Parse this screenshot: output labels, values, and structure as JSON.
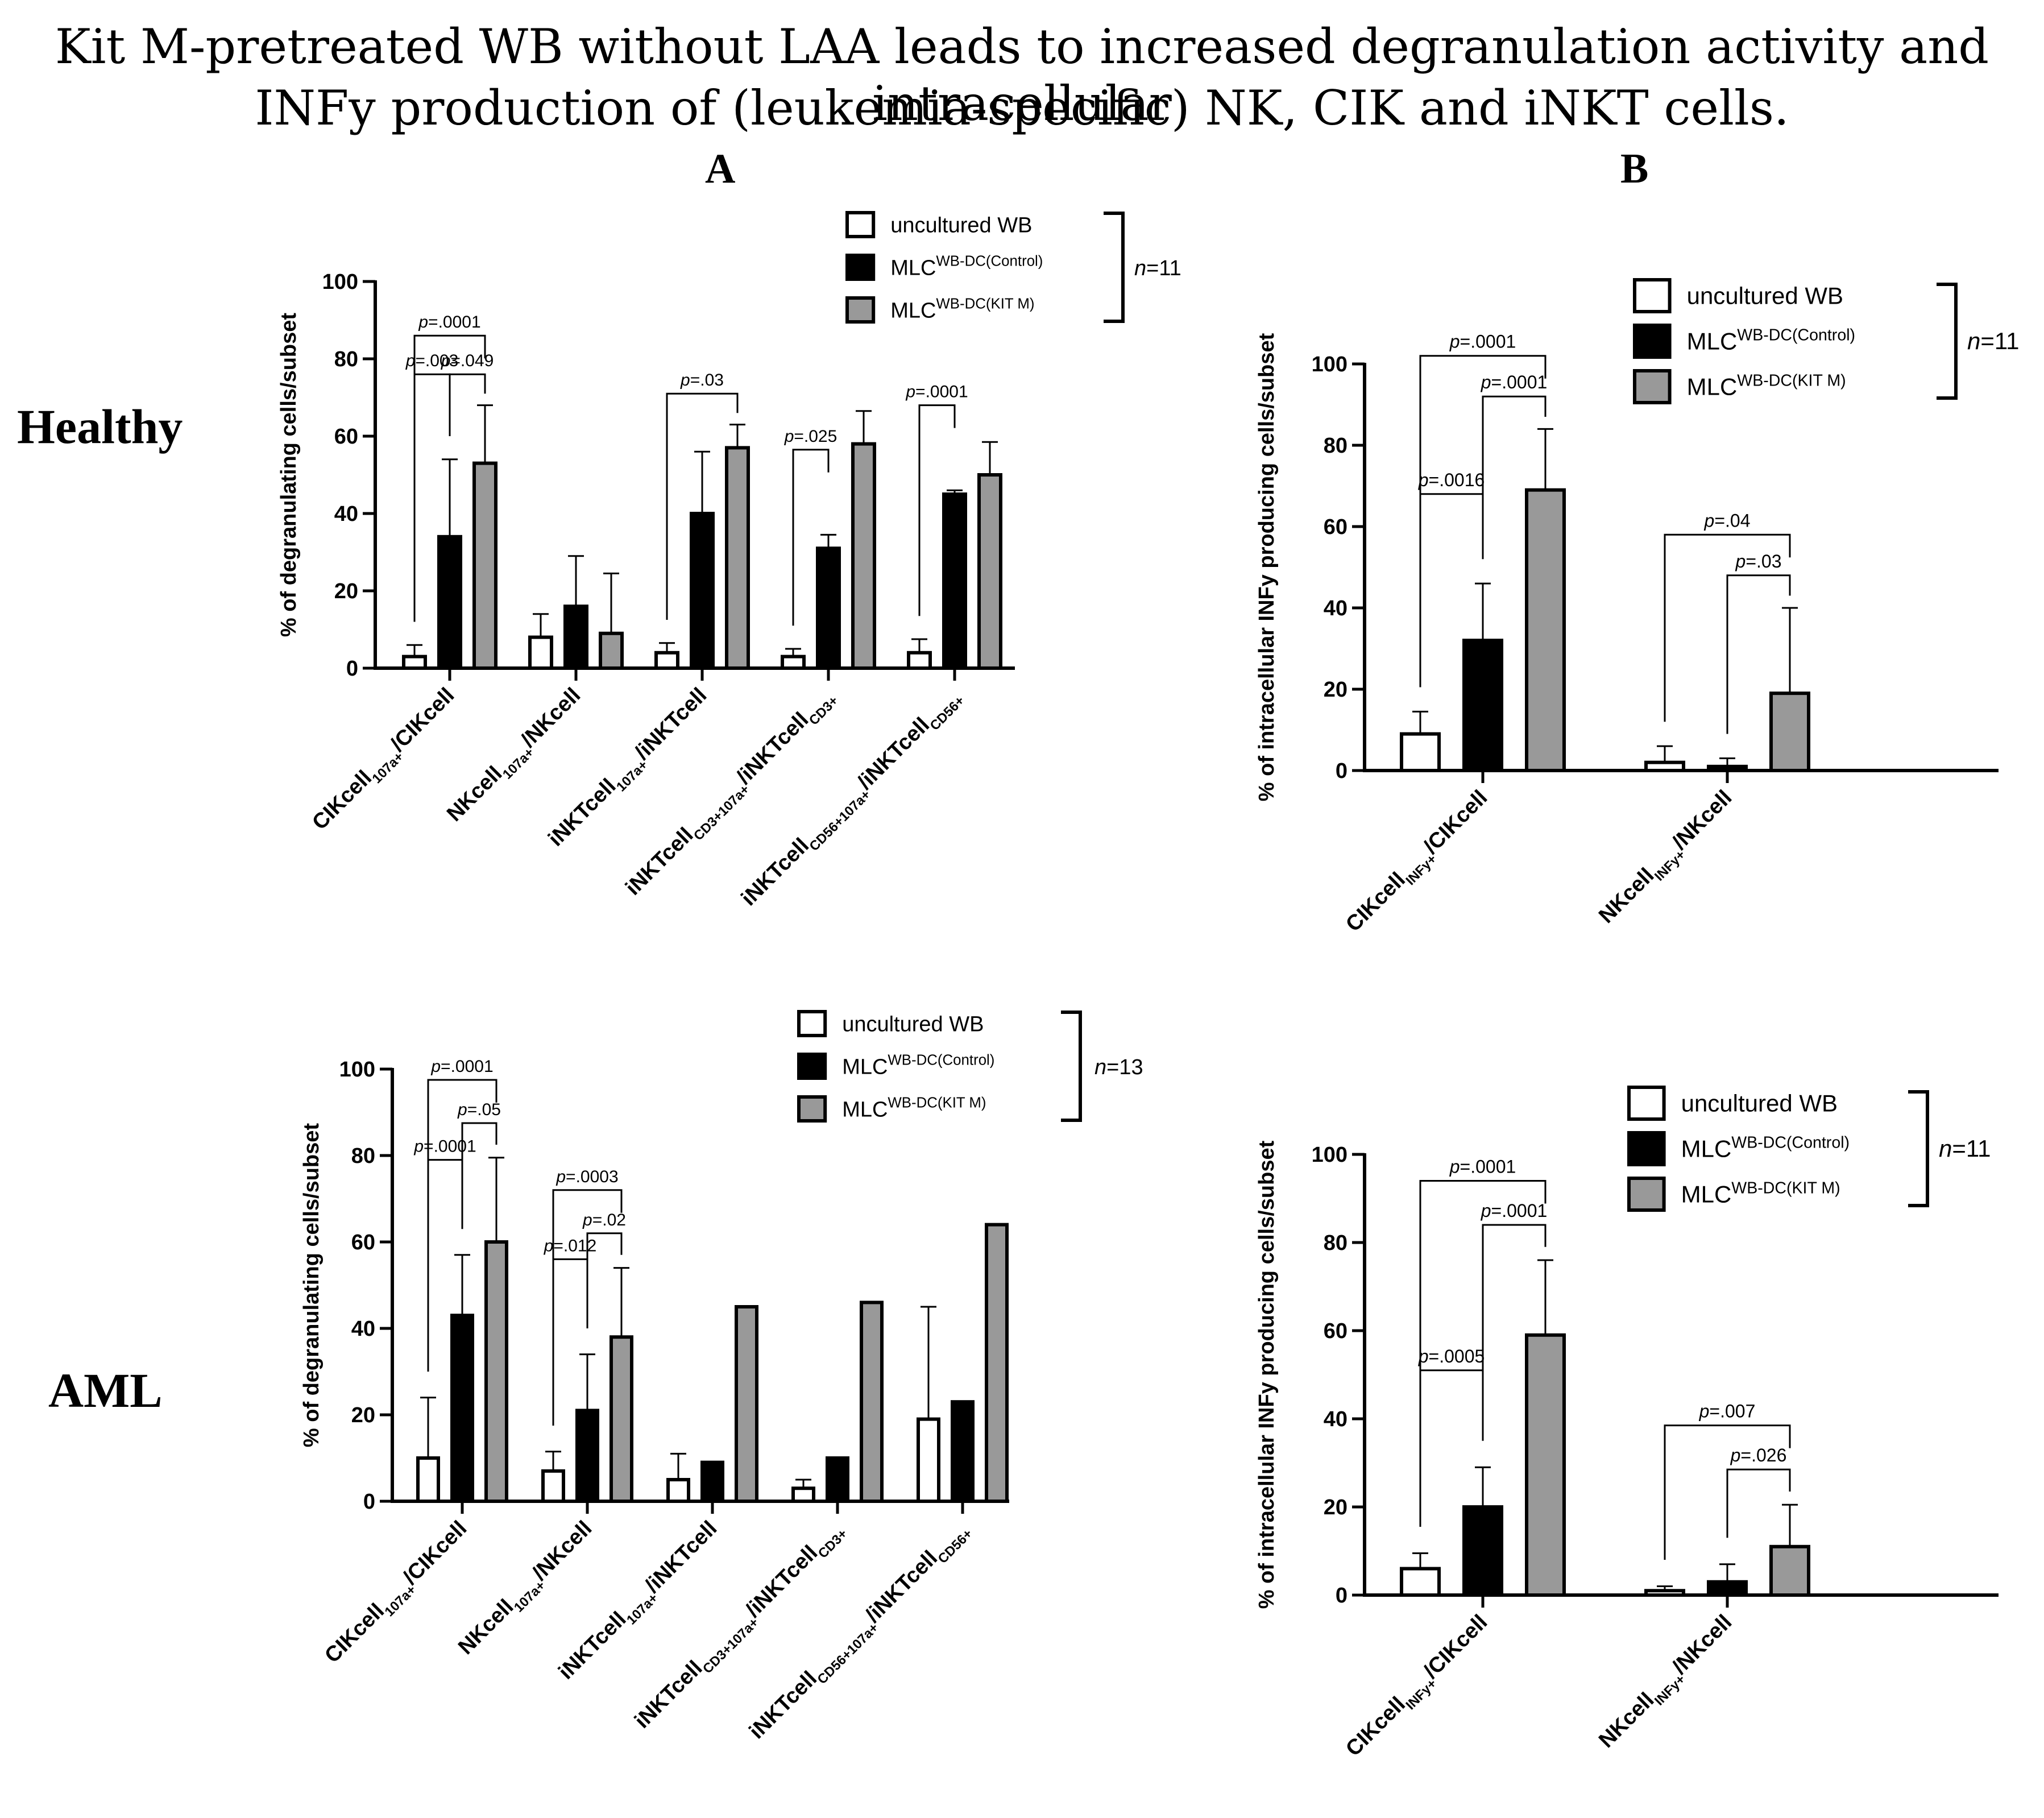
{
  "figure": {
    "title_line1": "Kit M-pretreated WB without LAA leads to increased degranulation activity and intracellular",
    "title_line2": "INFy production of (leukemia-specific) NK, CIK and iNKT cells.",
    "panel_a": "A",
    "panel_b": "B",
    "row_healthy": "Healthy",
    "row_aml": "AML"
  },
  "colors": {
    "uncultured": "#ffffff",
    "control": "#000000",
    "kitm": "#999999"
  },
  "chart_data": [
    {
      "id": "A-healthy",
      "type": "bar",
      "title": "",
      "ylabel": "% of degranulating cells/subset",
      "ylim": [
        0,
        100
      ],
      "yticks": [
        0,
        20,
        40,
        60,
        80,
        100
      ],
      "categories": [
        {
          "main": "CIKcell",
          "sub1": "107a+",
          "mid": "/CIKcell",
          "sub2": ""
        },
        {
          "main": "NKcell",
          "sub1": "107a+",
          "mid": "/NKcell",
          "sub2": ""
        },
        {
          "main": "iNKTcell",
          "sub1": "107a+",
          "mid": "/iNKTcell",
          "sub2": ""
        },
        {
          "main": "iNKTcell",
          "sub1": "CD3+107a+",
          "mid": "/iNKTcell",
          "sub2": "CD3+"
        },
        {
          "main": "iNKTcell",
          "sub1": "CD56+107a+",
          "mid": "/iNKTcell",
          "sub2": "CD56+"
        }
      ],
      "series": [
        {
          "name": "uncultured WB",
          "values": [
            3,
            8,
            4,
            3,
            4
          ],
          "errors": [
            3,
            6,
            2.5,
            2,
            3.5
          ]
        },
        {
          "name": "MLC WB-DC(Control)",
          "values": [
            34,
            16,
            40,
            31,
            45
          ],
          "errors": [
            20,
            13,
            16,
            3.5,
            1
          ]
        },
        {
          "name": "MLC WB-DC(KIT M)",
          "values": [
            53,
            9,
            57,
            58,
            50
          ],
          "errors": [
            15,
            15.5,
            6,
            8.5,
            8.5
          ]
        }
      ],
      "legend": {
        "items": [
          {
            "name": "uncultured WB",
            "sup": ""
          },
          {
            "name": "MLC",
            "sup": "WB-DC(Control)"
          },
          {
            "name": "MLC",
            "sup": "WB-DC(KIT M)"
          }
        ],
        "n_prefix": "n",
        "n_value": "=11"
      },
      "annotations": [
        {
          "label_p": "p",
          "label_v": "=.0001",
          "from": [
            0,
            0
          ],
          "to": [
            0,
            2
          ]
        },
        {
          "label_p": "p",
          "label_v": "=.003",
          "from": [
            0,
            0
          ],
          "to": [
            0,
            1
          ]
        },
        {
          "label_p": "p",
          "label_v": "=.049",
          "from": [
            0,
            1
          ],
          "to": [
            0,
            2
          ]
        },
        {
          "label_p": "p",
          "label_v": "=.03",
          "from": [
            2,
            0
          ],
          "to": [
            2,
            2
          ]
        },
        {
          "label_p": "p",
          "label_v": "=.025",
          "from": [
            3,
            0
          ],
          "to": [
            3,
            1
          ]
        },
        {
          "label_p": "p",
          "label_v": "=.0001",
          "from": [
            4,
            0
          ],
          "to": [
            4,
            1
          ]
        }
      ]
    },
    {
      "id": "B-healthy",
      "type": "bar",
      "title": "",
      "ylabel": "% of intracellular INFy producing cells/subset",
      "ylim": [
        0,
        100
      ],
      "yticks": [
        0,
        20,
        40,
        60,
        80,
        100
      ],
      "categories": [
        {
          "main": "CIKcell",
          "sub1": "INFy+",
          "mid": "/CIKcell",
          "sub2": ""
        },
        {
          "main": "NKcell",
          "sub1": "INFy+",
          "mid": "/NKcell",
          "sub2": ""
        }
      ],
      "series": [
        {
          "name": "uncultured WB",
          "values": [
            9,
            2
          ],
          "errors": [
            5.5,
            4
          ]
        },
        {
          "name": "MLC WB-DC(Control)",
          "values": [
            32,
            1
          ],
          "errors": [
            14,
            2
          ]
        },
        {
          "name": "MLC WB-DC(KIT M)",
          "values": [
            69,
            19
          ],
          "errors": [
            15,
            21
          ]
        }
      ],
      "legend": {
        "items": [
          {
            "name": "uncultured WB",
            "sup": ""
          },
          {
            "name": "MLC",
            "sup": "WB-DC(Control)"
          },
          {
            "name": "MLC",
            "sup": "WB-DC(KIT M)"
          }
        ],
        "n_prefix": "n",
        "n_value": "=11"
      },
      "annotations": [
        {
          "label_p": "p",
          "label_v": "=.0001",
          "from": [
            0,
            0
          ],
          "to": [
            0,
            2
          ]
        },
        {
          "label_p": "p",
          "label_v": "=.0016",
          "from": [
            0,
            0
          ],
          "to": [
            0,
            1
          ]
        },
        {
          "label_p": "p",
          "label_v": "=.0001",
          "from": [
            0,
            1
          ],
          "to": [
            0,
            2
          ]
        },
        {
          "label_p": "p",
          "label_v": "=.04",
          "from": [
            1,
            0
          ],
          "to": [
            1,
            2
          ]
        },
        {
          "label_p": "p",
          "label_v": "=.03",
          "from": [
            1,
            1
          ],
          "to": [
            1,
            2
          ]
        }
      ]
    },
    {
      "id": "A-aml",
      "type": "bar",
      "title": "",
      "ylabel": "% of degranulating cells/subset",
      "ylim": [
        0,
        100
      ],
      "yticks": [
        0,
        20,
        40,
        60,
        80,
        100
      ],
      "categories": [
        {
          "main": "CIKcell",
          "sub1": "107a+",
          "mid": "/CIKcell",
          "sub2": ""
        },
        {
          "main": "NKcell",
          "sub1": "107a+",
          "mid": "/NKcell",
          "sub2": ""
        },
        {
          "main": "iNKTcell",
          "sub1": "107a+",
          "mid": "/iNKTcell",
          "sub2": ""
        },
        {
          "main": "iNKTcell",
          "sub1": "CD3+107a+",
          "mid": "/iNKTcell",
          "sub2": "CD3+"
        },
        {
          "main": "iNKTcell",
          "sub1": "CD56+107a+",
          "mid": "/iNKTcell",
          "sub2": "CD56+"
        }
      ],
      "series": [
        {
          "name": "uncultured WB",
          "values": [
            10,
            7,
            5,
            3,
            19
          ],
          "errors": [
            14,
            4.5,
            6,
            2,
            26
          ]
        },
        {
          "name": "MLC WB-DC(Control)",
          "values": [
            43,
            21,
            9,
            10,
            23
          ],
          "errors": [
            14,
            13,
            0,
            0,
            0
          ]
        },
        {
          "name": "MLC WB-DC(KIT M)",
          "values": [
            60,
            38,
            45,
            46,
            64
          ],
          "errors": [
            19.5,
            16,
            0,
            0,
            0
          ]
        }
      ],
      "legend": {
        "items": [
          {
            "name": "uncultured WB",
            "sup": ""
          },
          {
            "name": "MLC",
            "sup": "WB-DC(Control)"
          },
          {
            "name": "MLC",
            "sup": "WB-DC(KIT M)"
          }
        ],
        "n_prefix": "n",
        "n_value": "=13"
      },
      "annotations": [
        {
          "label_p": "p",
          "label_v": "=.0001",
          "from": [
            0,
            0
          ],
          "to": [
            0,
            2
          ]
        },
        {
          "label_p": "p",
          "label_v": "=.0001",
          "from": [
            0,
            0
          ],
          "to": [
            0,
            1
          ]
        },
        {
          "label_p": "p",
          "label_v": "=.05",
          "from": [
            0,
            1
          ],
          "to": [
            0,
            2
          ]
        },
        {
          "label_p": "p",
          "label_v": "=.0003",
          "from": [
            1,
            0
          ],
          "to": [
            1,
            2
          ]
        },
        {
          "label_p": "p",
          "label_v": "=.012",
          "from": [
            1,
            0
          ],
          "to": [
            1,
            1
          ]
        },
        {
          "label_p": "p",
          "label_v": "=.02",
          "from": [
            1,
            1
          ],
          "to": [
            1,
            2
          ]
        }
      ]
    },
    {
      "id": "B-aml",
      "type": "bar",
      "title": "",
      "ylabel": "% of intracellular INFy producing cells/subset",
      "ylim": [
        0,
        100
      ],
      "yticks": [
        0,
        20,
        40,
        60,
        80,
        100
      ],
      "categories": [
        {
          "main": "CIKcell",
          "sub1": "INFy+",
          "mid": "/CIKcell",
          "sub2": ""
        },
        {
          "main": "NKcell",
          "sub1": "INFy+",
          "mid": "/NKcell",
          "sub2": ""
        }
      ],
      "series": [
        {
          "name": "uncultured WB",
          "values": [
            6,
            1
          ],
          "errors": [
            3.5,
            1
          ]
        },
        {
          "name": "MLC WB-DC(Control)",
          "values": [
            20,
            3
          ],
          "errors": [
            9,
            4
          ]
        },
        {
          "name": "MLC WB-DC(KIT M)",
          "values": [
            59,
            11
          ],
          "errors": [
            17,
            9.5
          ]
        }
      ],
      "legend": {
        "items": [
          {
            "name": "uncultured WB",
            "sup": ""
          },
          {
            "name": "MLC",
            "sup": "WB-DC(Control)"
          },
          {
            "name": "MLC",
            "sup": "WB-DC(KIT M)"
          }
        ],
        "n_prefix": "n",
        "n_value": "=11"
      },
      "annotations": [
        {
          "label_p": "p",
          "label_v": "=.0001",
          "from": [
            0,
            0
          ],
          "to": [
            0,
            2
          ]
        },
        {
          "label_p": "p",
          "label_v": "=.0005",
          "from": [
            0,
            0
          ],
          "to": [
            0,
            1
          ]
        },
        {
          "label_p": "p",
          "label_v": "=.0001",
          "from": [
            0,
            1
          ],
          "to": [
            0,
            2
          ]
        },
        {
          "label_p": "p",
          "label_v": "=.007",
          "from": [
            1,
            0
          ],
          "to": [
            1,
            2
          ]
        },
        {
          "label_p": "p",
          "label_v": "=.026",
          "from": [
            1,
            1
          ],
          "to": [
            1,
            2
          ]
        }
      ]
    }
  ]
}
